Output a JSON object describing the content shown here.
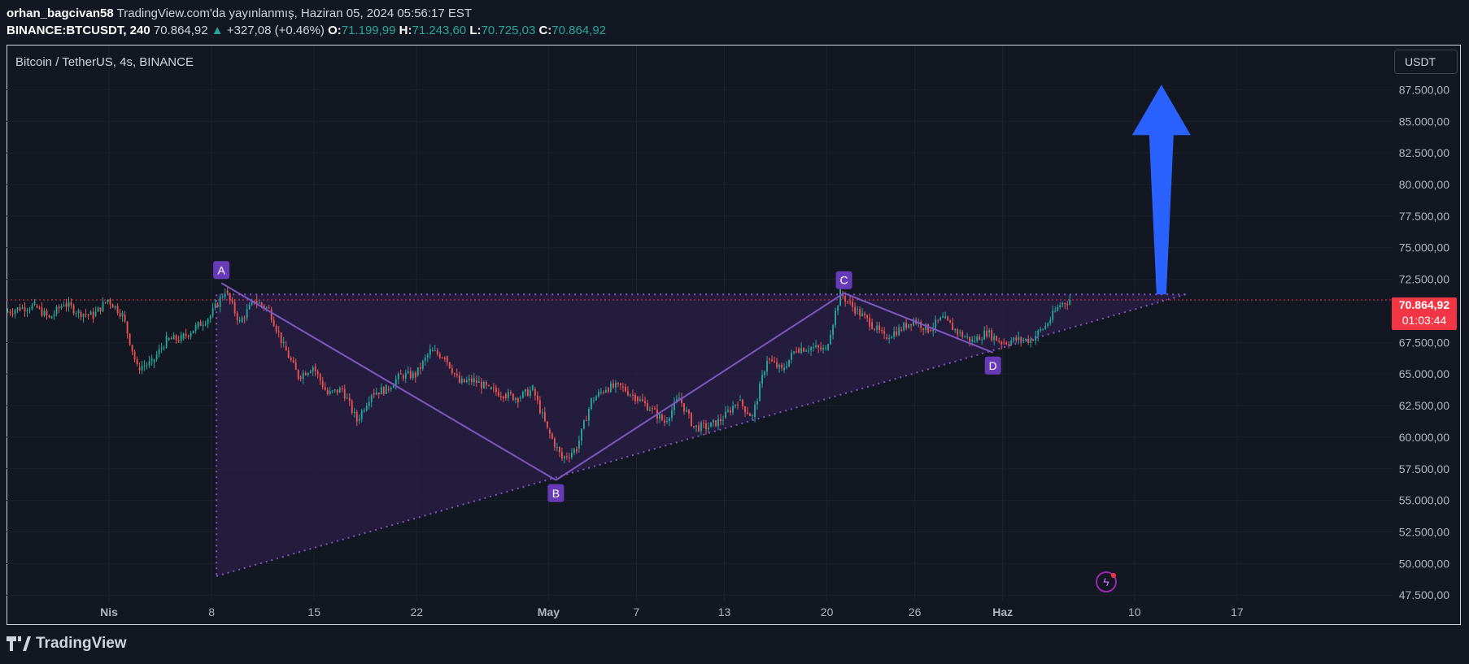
{
  "header": {
    "author": "orhan_bagcivan58",
    "published": "TradingView.com'da yayınlanmış, Haziran 05, 2024 05:56:17 EST",
    "symbol": "BINANCE:BTCUSDT, 240",
    "last": "70.864,92",
    "change": "+327,08 (+0.46%)",
    "o_label": "O:",
    "o_value": "71.199,99",
    "h_label": "H:",
    "h_value": "71.243,60",
    "l_label": "L:",
    "l_value": "70.725,03",
    "c_label": "C:",
    "c_value": "70.864,92"
  },
  "chart": {
    "pair_title": "Bitcoin / TetherUS, 4s, BINANCE",
    "currency": "USDT",
    "price_tag_value": "70.864,92",
    "price_tag_timer": "01:03:44",
    "brand": "TradingView"
  },
  "colors": {
    "background": "#131722",
    "up": "#26a69a",
    "down": "#ef5350",
    "pattern": "#7e57c2",
    "pattern_fill": "#2a1f45",
    "arrow": "#2962ff",
    "price_line": "#f23645"
  },
  "chart_data": {
    "type": "candlestick",
    "y_ticks": [
      87500,
      85000,
      82500,
      80000,
      77500,
      75000,
      72500,
      67500,
      65000,
      62500,
      60000,
      57500,
      55000,
      52500,
      50000,
      47500
    ],
    "y_tick_labels": [
      "87.500,00",
      "85.000,00",
      "82.500,00",
      "80.000,00",
      "77.500,00",
      "75.000,00",
      "72.500,00",
      "67.500,00",
      "65.000,00",
      "62.500,00",
      "60.000,00",
      "57.500,00",
      "55.000,00",
      "52.500,00",
      "50.000,00",
      "47.500,00"
    ],
    "ylim": [
      47000,
      91000
    ],
    "x_ticks": [
      {
        "label": "Nis",
        "date": "2024-04-01",
        "bold": true
      },
      {
        "label": "8",
        "date": "2024-04-08",
        "bold": false
      },
      {
        "label": "15",
        "date": "2024-04-15",
        "bold": false
      },
      {
        "label": "22",
        "date": "2024-04-22",
        "bold": false
      },
      {
        "label": "May",
        "date": "2024-05-01",
        "bold": true
      },
      {
        "label": "7",
        "date": "2024-05-07",
        "bold": false
      },
      {
        "label": "13",
        "date": "2024-05-13",
        "bold": false
      },
      {
        "label": "20",
        "date": "2024-05-20",
        "bold": false
      },
      {
        "label": "26",
        "date": "2024-05-26",
        "bold": false
      },
      {
        "label": "Haz",
        "date": "2024-06-01",
        "bold": true
      },
      {
        "label": "10",
        "date": "2024-06-10",
        "bold": false
      },
      {
        "label": "17",
        "date": "2024-06-17",
        "bold": false
      }
    ],
    "xlim": [
      "2024-03-25T00:00",
      "2024-06-27T12:00"
    ],
    "last_price": 70864.92,
    "closes": [
      [
        "2024-03-25",
        70200
      ],
      [
        "2024-03-26",
        70400
      ],
      [
        "2024-03-27",
        69400
      ],
      [
        "2024-03-28",
        70600
      ],
      [
        "2024-03-29",
        69900
      ],
      [
        "2024-03-30",
        69600
      ],
      [
        "2024-03-31",
        70900
      ],
      [
        "2024-04-01",
        69700
      ],
      [
        "2024-04-02",
        65500
      ],
      [
        "2024-04-03",
        65900
      ],
      [
        "2024-04-04",
        67700
      ],
      [
        "2024-04-05",
        67800
      ],
      [
        "2024-04-06",
        68700
      ],
      [
        "2024-04-07",
        69600
      ],
      [
        "2024-04-08",
        71600
      ],
      [
        "2024-04-09",
        69100
      ],
      [
        "2024-04-10",
        70800
      ],
      [
        "2024-04-11",
        70100
      ],
      [
        "2024-04-12",
        67200
      ],
      [
        "2024-04-13",
        64800
      ],
      [
        "2024-04-14",
        65600
      ],
      [
        "2024-04-15",
        63400
      ],
      [
        "2024-04-16",
        63800
      ],
      [
        "2024-04-17",
        61300
      ],
      [
        "2024-04-18",
        63500
      ],
      [
        "2024-04-19",
        63800
      ],
      [
        "2024-04-20",
        64900
      ],
      [
        "2024-04-21",
        64900
      ],
      [
        "2024-04-22",
        66800
      ],
      [
        "2024-04-23",
        66400
      ],
      [
        "2024-04-24",
        64300
      ],
      [
        "2024-04-25",
        64500
      ],
      [
        "2024-04-26",
        63800
      ],
      [
        "2024-04-27",
        63400
      ],
      [
        "2024-04-28",
        63100
      ],
      [
        "2024-04-29",
        63800
      ],
      [
        "2024-04-30",
        60600
      ],
      [
        "2024-05-01",
        58300
      ],
      [
        "2024-05-02",
        59100
      ],
      [
        "2024-05-03",
        62900
      ],
      [
        "2024-05-04",
        63900
      ],
      [
        "2024-05-05",
        64000
      ],
      [
        "2024-05-06",
        63200
      ],
      [
        "2024-05-07",
        62300
      ],
      [
        "2024-05-08",
        61200
      ],
      [
        "2024-05-09",
        63100
      ],
      [
        "2024-05-10",
        60800
      ],
      [
        "2024-05-11",
        60800
      ],
      [
        "2024-05-12",
        61500
      ],
      [
        "2024-05-13",
        62900
      ],
      [
        "2024-05-14",
        61600
      ],
      [
        "2024-05-15",
        66200
      ],
      [
        "2024-05-16",
        65300
      ],
      [
        "2024-05-17",
        67000
      ],
      [
        "2024-05-18",
        67100
      ],
      [
        "2024-05-19",
        66900
      ],
      [
        "2024-05-20",
        71400
      ],
      [
        "2024-05-21",
        70100
      ],
      [
        "2024-05-22",
        69100
      ],
      [
        "2024-05-23",
        67900
      ],
      [
        "2024-05-24",
        68500
      ],
      [
        "2024-05-25",
        69300
      ],
      [
        "2024-05-26",
        68500
      ],
      [
        "2024-05-27",
        69400
      ],
      [
        "2024-05-28",
        68300
      ],
      [
        "2024-05-29",
        67600
      ],
      [
        "2024-05-30",
        68300
      ],
      [
        "2024-05-31",
        67500
      ],
      [
        "2024-06-01",
        67700
      ],
      [
        "2024-06-02",
        67700
      ],
      [
        "2024-06-03",
        68800
      ],
      [
        "2024-06-04",
        70500
      ],
      [
        "2024-06-05",
        70864.92
      ]
    ],
    "pattern": {
      "points": [
        {
          "label": "A",
          "date": "2024-04-08T16:00",
          "price": 72200
        },
        {
          "label": "B",
          "date": "2024-05-01T12:00",
          "price": 56600
        },
        {
          "label": "C",
          "date": "2024-05-21T04:00",
          "price": 71400
        },
        {
          "label": "D",
          "date": "2024-05-31T08:00",
          "price": 66700
        }
      ],
      "top_line": {
        "from": {
          "date": "2024-04-08T16:00",
          "price": 71300
        },
        "to": {
          "date": "2024-06-13T12:00",
          "price": 71300
        }
      },
      "bottom_line": {
        "from": {
          "date": "2024-04-08T08:00",
          "price": 49000
        },
        "to": {
          "date": "2024-06-13T12:00",
          "price": 71300
        }
      },
      "vertical": {
        "date": "2024-04-08T08:00",
        "from": 71300,
        "to": 49000
      }
    },
    "arrow": {
      "date": "2024-06-11T20:00",
      "from": 71300,
      "to": 87900
    }
  }
}
